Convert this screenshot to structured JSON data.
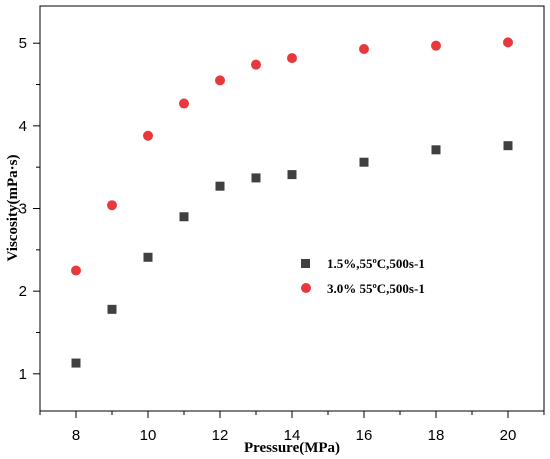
{
  "chart_data": {
    "type": "scatter",
    "xlabel": "Pressure(MPa)",
    "ylabel": "Viscosity(mPa·s)",
    "xlim": [
      7,
      21
    ],
    "ylim": [
      0.55,
      5.45
    ],
    "xticks": [
      8,
      10,
      12,
      14,
      16,
      18,
      20
    ],
    "yticks": [
      1,
      2,
      3,
      4,
      5
    ],
    "grid": false,
    "legend_position": "right-middle",
    "series": [
      {
        "name": "1.5%,55ºC,500s-1",
        "marker": "square",
        "color": "#404040",
        "x": [
          8,
          9,
          10,
          11,
          12,
          13,
          14,
          16,
          18,
          20
        ],
        "y": [
          1.13,
          1.78,
          2.41,
          2.9,
          3.27,
          3.37,
          3.41,
          3.56,
          3.71,
          3.76
        ]
      },
      {
        "name": "3.0% 55ºC,500s-1",
        "marker": "circle",
        "color": "#e8383d",
        "x": [
          8,
          9,
          10,
          11,
          12,
          13,
          14,
          16,
          18,
          20
        ],
        "y": [
          2.25,
          3.04,
          3.88,
          4.27,
          4.55,
          4.74,
          4.82,
          4.93,
          4.97,
          5.01
        ]
      }
    ]
  }
}
